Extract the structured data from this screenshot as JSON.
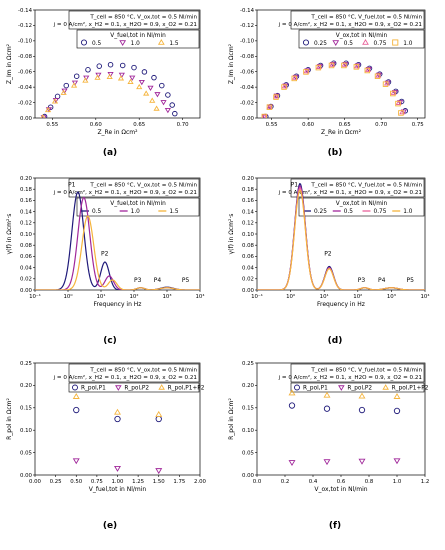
{
  "colors": {
    "c1": "#1f1a7a",
    "c2": "#a0279a",
    "c3": "#e9629a",
    "c4": "#f5b43c"
  },
  "panels": [
    {
      "label": "(a)",
      "type": "nyquist",
      "info": [
        "T_cell = 850 °C, V_ox,tot = 0.5 Nl/min",
        "j = 0 A/cm², x_H2 = 0.1, x_H2O = 0.9, x_O2 = 0.21"
      ],
      "legend_title": "V_fuel,tot in Nl/min",
      "xlabel": "Z_Re in Ωcm²",
      "ylabel": "Z_Im in Ωcm²",
      "xlim": [
        0.53,
        0.72
      ],
      "ylim": [
        0.0,
        -0.15
      ],
      "xticks": [
        "0.55",
        "0.60",
        "0.65",
        "0.70"
      ],
      "yticks": [
        "0.00",
        "-0.02",
        "-0.04",
        "-0.06",
        "-0.08",
        "-0.10",
        "-0.12",
        "-0.14"
      ],
      "series": [
        {
          "name": "0.5",
          "marker": "circle",
          "color": "c1",
          "points": [
            [
              0.541,
              -0.002
            ],
            [
              0.548,
              -0.015
            ],
            [
              0.556,
              -0.03
            ],
            [
              0.566,
              -0.045
            ],
            [
              0.578,
              -0.058
            ],
            [
              0.591,
              -0.067
            ],
            [
              0.604,
              -0.072
            ],
            [
              0.617,
              -0.074
            ],
            [
              0.631,
              -0.073
            ],
            [
              0.644,
              -0.07
            ],
            [
              0.656,
              -0.064
            ],
            [
              0.667,
              -0.056
            ],
            [
              0.676,
              -0.045
            ],
            [
              0.683,
              -0.032
            ],
            [
              0.688,
              -0.018
            ],
            [
              0.691,
              -0.006
            ]
          ]
        },
        {
          "name": "1.0",
          "marker": "tri-down",
          "color": "c2",
          "points": [
            [
              0.54,
              -0.001
            ],
            [
              0.546,
              -0.012
            ],
            [
              0.554,
              -0.025
            ],
            [
              0.564,
              -0.038
            ],
            [
              0.576,
              -0.049
            ],
            [
              0.589,
              -0.056
            ],
            [
              0.603,
              -0.06
            ],
            [
              0.617,
              -0.061
            ],
            [
              0.63,
              -0.06
            ],
            [
              0.642,
              -0.056
            ],
            [
              0.653,
              -0.05
            ],
            [
              0.663,
              -0.042
            ],
            [
              0.671,
              -0.033
            ],
            [
              0.678,
              -0.022
            ],
            [
              0.683,
              -0.011
            ]
          ]
        },
        {
          "name": "1.5",
          "marker": "tri-up",
          "color": "c4",
          "points": [
            [
              0.539,
              -0.001
            ],
            [
              0.545,
              -0.011
            ],
            [
              0.553,
              -0.023
            ],
            [
              0.563,
              -0.035
            ],
            [
              0.575,
              -0.045
            ],
            [
              0.588,
              -0.052
            ],
            [
              0.602,
              -0.056
            ],
            [
              0.616,
              -0.057
            ],
            [
              0.629,
              -0.055
            ],
            [
              0.64,
              -0.05
            ],
            [
              0.65,
              -0.043
            ],
            [
              0.658,
              -0.034
            ],
            [
              0.665,
              -0.024
            ],
            [
              0.67,
              -0.013
            ]
          ]
        }
      ]
    },
    {
      "label": "(b)",
      "type": "nyquist",
      "info": [
        "T_cell = 850 °C, V_fuel,tot = 0.5 Nl/min",
        "j = 0 A/cm², x_H2 = 0.1, x_H2O = 0.9, x_O2 = 0.21"
      ],
      "legend_title": "V_ox,tot in Nl/min",
      "xlabel": "Z_Re in Ωcm²",
      "ylabel": "Z_Im in Ωcm²",
      "xlim": [
        0.53,
        0.76
      ],
      "ylim": [
        0.0,
        -0.15
      ],
      "xticks": [
        "0.55",
        "0.60",
        "0.65",
        "0.70",
        "0.75"
      ],
      "yticks": [
        "0.00",
        "-0.02",
        "-0.04",
        "-0.06",
        "-0.08",
        "-0.10",
        "-0.12",
        "-0.14"
      ],
      "series": [
        {
          "name": "0.25",
          "marker": "circle",
          "color": "c1",
          "points": [
            [
              0.542,
              -0.002
            ],
            [
              0.549,
              -0.016
            ],
            [
              0.558,
              -0.031
            ],
            [
              0.57,
              -0.046
            ],
            [
              0.584,
              -0.058
            ],
            [
              0.6,
              -0.067
            ],
            [
              0.617,
              -0.073
            ],
            [
              0.635,
              -0.076
            ],
            [
              0.652,
              -0.076
            ],
            [
              0.669,
              -0.074
            ],
            [
              0.684,
              -0.069
            ],
            [
              0.698,
              -0.061
            ],
            [
              0.71,
              -0.05
            ],
            [
              0.72,
              -0.037
            ],
            [
              0.728,
              -0.023
            ],
            [
              0.733,
              -0.01
            ]
          ]
        },
        {
          "name": "0.5",
          "marker": "tri-down",
          "color": "c2",
          "points": [
            [
              0.541,
              -0.002
            ],
            [
              0.548,
              -0.016
            ],
            [
              0.557,
              -0.031
            ],
            [
              0.569,
              -0.045
            ],
            [
              0.583,
              -0.057
            ],
            [
              0.599,
              -0.066
            ],
            [
              0.616,
              -0.072
            ],
            [
              0.634,
              -0.075
            ],
            [
              0.651,
              -0.075
            ],
            [
              0.668,
              -0.073
            ],
            [
              0.683,
              -0.068
            ],
            [
              0.697,
              -0.06
            ],
            [
              0.709,
              -0.049
            ],
            [
              0.719,
              -0.036
            ],
            [
              0.726,
              -0.022
            ],
            [
              0.731,
              -0.009
            ]
          ]
        },
        {
          "name": "0.75",
          "marker": "tri-up",
          "color": "c3",
          "points": [
            [
              0.54,
              -0.002
            ],
            [
              0.547,
              -0.015
            ],
            [
              0.556,
              -0.03
            ],
            [
              0.568,
              -0.044
            ],
            [
              0.582,
              -0.056
            ],
            [
              0.598,
              -0.065
            ],
            [
              0.615,
              -0.071
            ],
            [
              0.633,
              -0.074
            ],
            [
              0.65,
              -0.074
            ],
            [
              0.667,
              -0.072
            ],
            [
              0.682,
              -0.067
            ],
            [
              0.696,
              -0.059
            ],
            [
              0.708,
              -0.048
            ],
            [
              0.717,
              -0.035
            ],
            [
              0.724,
              -0.021
            ],
            [
              0.729,
              -0.008
            ]
          ]
        },
        {
          "name": "1.0",
          "marker": "square",
          "color": "c4",
          "points": [
            [
              0.54,
              -0.002
            ],
            [
              0.547,
              -0.015
            ],
            [
              0.556,
              -0.029
            ],
            [
              0.567,
              -0.043
            ],
            [
              0.581,
              -0.055
            ],
            [
              0.597,
              -0.064
            ],
            [
              0.614,
              -0.07
            ],
            [
              0.632,
              -0.073
            ],
            [
              0.649,
              -0.073
            ],
            [
              0.666,
              -0.071
            ],
            [
              0.681,
              -0.066
            ],
            [
              0.695,
              -0.058
            ],
            [
              0.706,
              -0.047
            ],
            [
              0.716,
              -0.034
            ],
            [
              0.723,
              -0.02
            ],
            [
              0.727,
              -0.007
            ]
          ]
        }
      ]
    },
    {
      "label": "(c)",
      "type": "drt",
      "info": [
        "T_cell = 850 °C, V_ox,tot = 0.5 Nl/min",
        "j = 0 A/cm², x_H2 = 0.1, x_H2O = 0.9, x_O2 = 0.21"
      ],
      "legend_title": "V_fuel,tot in Nl/min",
      "xlabel": "Frequency in Hz",
      "ylabel": "γ(f) in Ωcm²·s",
      "xlim": [
        -1,
        4
      ],
      "ylim": [
        0,
        0.2
      ],
      "xticks": [
        "10⁻¹",
        "10⁰",
        "10¹",
        "10²",
        "10³",
        "10⁴"
      ],
      "yticks": [
        "0.00",
        "0.02",
        "0.04",
        "0.06",
        "0.08",
        "0.10",
        "0.12",
        "0.14",
        "0.16",
        "0.18",
        "0.20"
      ],
      "annotations": [
        "P1",
        "P2",
        "P3",
        "P4",
        "P5"
      ],
      "series": [
        {
          "name": "0.5",
          "color": "c1",
          "peaks": [
            [
              0.3,
              0.175,
              0.18
            ],
            [
              1.12,
              0.05,
              0.13
            ],
            [
              2.2,
              0.004,
              0.12
            ],
            [
              3.0,
              0.005,
              0.2
            ]
          ]
        },
        {
          "name": "1.0",
          "color": "c2",
          "peaks": [
            [
              0.48,
              0.165,
              0.18
            ],
            [
              1.25,
              0.025,
              0.13
            ],
            [
              2.2,
              0.004,
              0.12
            ],
            [
              3.0,
              0.004,
              0.2
            ]
          ]
        },
        {
          "name": "1.5",
          "color": "c4",
          "peaks": [
            [
              0.6,
              0.132,
              0.18
            ],
            [
              1.35,
              0.018,
              0.13
            ],
            [
              2.2,
              0.004,
              0.12
            ],
            [
              3.0,
              0.004,
              0.2
            ]
          ]
        }
      ]
    },
    {
      "label": "(d)",
      "type": "drt",
      "info": [
        "T_cell = 850 °C, V_fuel,tot = 0.5 Nl/min",
        "j = 0 A/cm², x_H2 = 0.1, x_H2O = 0.9, x_O2 = 0.21"
      ],
      "legend_title": "V_ox,tot in Nl/min",
      "xlabel": "Frequency in Hz",
      "ylabel": "γ(f) in Ωcm²·s",
      "xlim": [
        -1,
        4
      ],
      "ylim": [
        0,
        0.2
      ],
      "xticks": [
        "10⁻¹",
        "10⁰",
        "10¹",
        "10²",
        "10³",
        "10⁴"
      ],
      "yticks": [
        "0.00",
        "0.02",
        "0.04",
        "0.06",
        "0.08",
        "0.10",
        "0.12",
        "0.14",
        "0.16",
        "0.18",
        "0.20"
      ],
      "annotations": [
        "P1",
        "P2",
        "P3",
        "P4",
        "P5"
      ],
      "series": [
        {
          "name": "0.25",
          "color": "c1",
          "peaks": [
            [
              0.28,
              0.19,
              0.16
            ],
            [
              1.15,
              0.042,
              0.13
            ],
            [
              2.2,
              0.004,
              0.12
            ],
            [
              3.0,
              0.004,
              0.2
            ]
          ]
        },
        {
          "name": "0.5",
          "color": "c2",
          "peaks": [
            [
              0.28,
              0.186,
              0.16
            ],
            [
              1.15,
              0.04,
              0.13
            ],
            [
              2.2,
              0.004,
              0.12
            ],
            [
              3.0,
              0.004,
              0.2
            ]
          ]
        },
        {
          "name": "0.75",
          "color": "c3",
          "peaks": [
            [
              0.28,
              0.182,
              0.16
            ],
            [
              1.15,
              0.039,
              0.13
            ],
            [
              2.2,
              0.004,
              0.12
            ],
            [
              3.0,
              0.004,
              0.2
            ]
          ]
        },
        {
          "name": "1.0",
          "color": "c4",
          "peaks": [
            [
              0.28,
              0.178,
              0.16
            ],
            [
              1.15,
              0.038,
              0.13
            ],
            [
              2.2,
              0.004,
              0.12
            ],
            [
              3.0,
              0.004,
              0.2
            ]
          ]
        }
      ]
    },
    {
      "label": "(e)",
      "type": "scatter",
      "info": [
        "T_cell = 850 °C, V_ox,tot = 0.5 Nl/min",
        "j = 0 A/cm², x_H2 = 0.1, x_H2O = 0.9, x_O2 = 0.21"
      ],
      "xlabel": "V_fuel,tot in Nl/min",
      "ylabel": "R_pol in Ωcm²",
      "xlim": [
        0,
        2.0
      ],
      "ylim": [
        0,
        0.25
      ],
      "xticks": [
        "0.00",
        "0.25",
        "0.50",
        "0.75",
        "1.00",
        "1.25",
        "1.50",
        "1.75",
        "2.00"
      ],
      "yticks": [
        "0.00",
        "0.05",
        "0.10",
        "0.15",
        "0.20",
        "0.25"
      ],
      "series": [
        {
          "name": "R_pol,P1",
          "marker": "circle",
          "color": "c1",
          "x": [
            0.5,
            1.0,
            1.5
          ],
          "values": [
            0.145,
            0.125,
            0.125
          ]
        },
        {
          "name": "R_pol,P2",
          "marker": "tri-down",
          "color": "c2",
          "x": [
            0.5,
            1.0,
            1.5
          ],
          "values": [
            0.032,
            0.015,
            0.01
          ]
        },
        {
          "name": "R_pol,P1+P2",
          "marker": "tri-up",
          "color": "c4",
          "x": [
            0.5,
            1.0,
            1.5
          ],
          "values": [
            0.175,
            0.14,
            0.135
          ]
        }
      ]
    },
    {
      "label": "(f)",
      "type": "scatter",
      "info": [
        "T_cell = 850 °C, V_fuel,tot = 0.5 Nl/min",
        "j = 0 A/cm², x_H2 = 0.1, x_H2O = 0.9, x_O2 = 0.21"
      ],
      "xlabel": "V_ox,tot in Nl/min",
      "ylabel": "R_pol in Ωcm²",
      "xlim": [
        0,
        1.2
      ],
      "ylim": [
        0,
        0.25
      ],
      "xticks": [
        "0.0",
        "0.2",
        "0.4",
        "0.6",
        "0.8",
        "1.0",
        "1.2"
      ],
      "yticks": [
        "0.00",
        "0.05",
        "0.10",
        "0.15",
        "0.20",
        "0.25"
      ],
      "series": [
        {
          "name": "R_pol,P1",
          "marker": "circle",
          "color": "c1",
          "x": [
            0.25,
            0.5,
            0.75,
            1.0
          ],
          "values": [
            0.155,
            0.148,
            0.145,
            0.143
          ]
        },
        {
          "name": "R_pol,P2",
          "marker": "tri-down",
          "color": "c2",
          "x": [
            0.25,
            0.5,
            0.75,
            1.0
          ],
          "values": [
            0.028,
            0.03,
            0.031,
            0.032
          ]
        },
        {
          "name": "R_pol,P1+P2",
          "marker": "tri-up",
          "color": "c4",
          "x": [
            0.25,
            0.5,
            0.75,
            1.0
          ],
          "values": [
            0.183,
            0.178,
            0.176,
            0.175
          ]
        }
      ]
    }
  ]
}
